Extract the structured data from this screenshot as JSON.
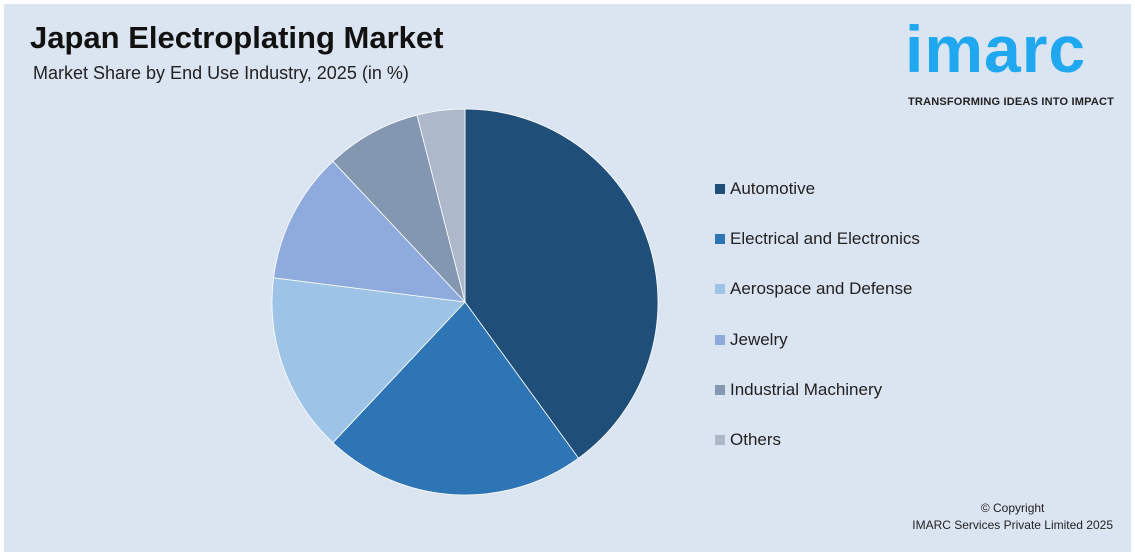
{
  "title": "Japan Electroplating Market",
  "subtitle": "Market Share by End Use Industry, 2025 (in %)",
  "logo": {
    "text": "imarc",
    "tagline": "TRANSFORMING IDEAS INTO IMPACT",
    "color": "#1fa8f0"
  },
  "copyright": {
    "line1": "© Copyright",
    "line2": "IMARC Services Private Limited 2025"
  },
  "chart_data": {
    "type": "pie",
    "title": "Japan Electroplating Market",
    "subtitle": "Market Share by End Use Industry, 2025 (in %)",
    "categories": [
      "Automotive",
      "Electrical and Electronics",
      "Aerospace and Defense",
      "Jewelry",
      "Industrial Machinery",
      "Others"
    ],
    "values": [
      40,
      22,
      15,
      11,
      8,
      4
    ],
    "colors": [
      "#1f4e79",
      "#2e75b6",
      "#9dc3e6",
      "#8faadc",
      "#8497b0",
      "#adb9ca"
    ],
    "legend": "right",
    "start": "top, clockwise"
  }
}
